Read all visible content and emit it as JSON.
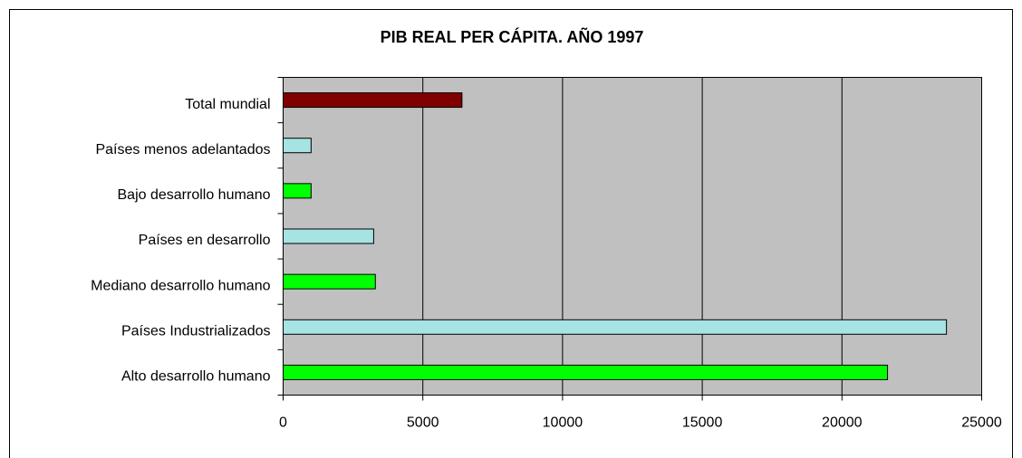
{
  "chart_data": {
    "type": "bar",
    "orientation": "horizontal",
    "title": "PIB REAL PER CÁPITA. AÑO 1997",
    "categories": [
      "Total mundial",
      "Países menos adelantados",
      "Bajo desarrollo humano",
      "Países en desarrollo",
      "Mediano desarrollo humano",
      "Países Industrializados",
      "Alto desarrollo humano"
    ],
    "values": [
      6400,
      1000,
      1000,
      3240,
      3300,
      23740,
      21630
    ],
    "colors": [
      "#800000",
      "#a6e3e3",
      "#00ff00",
      "#a6e3e3",
      "#00ff00",
      "#a6e3e3",
      "#00ff00"
    ],
    "xlim": [
      0,
      25000
    ],
    "xticks": [
      0,
      5000,
      10000,
      15000,
      20000,
      25000
    ],
    "grid": true
  }
}
